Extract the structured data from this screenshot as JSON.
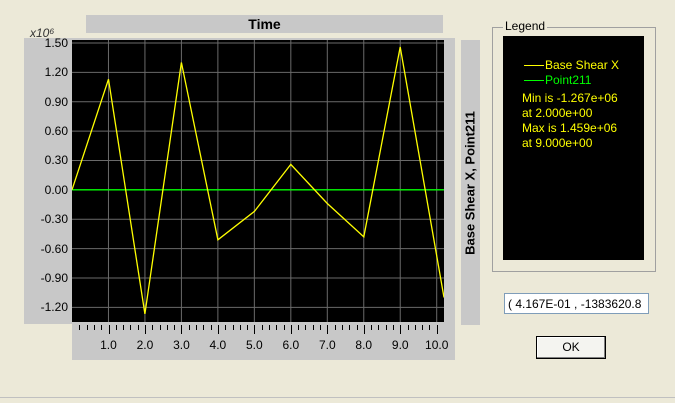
{
  "chart": {
    "title": "Time",
    "y_scale": "x10⁶",
    "ylabel": "Base Shear X, Point211",
    "yticks": [
      "1.50",
      "1.20",
      "0.90",
      "0.60",
      "0.30",
      "0.00",
      "-0.30",
      "-0.60",
      "-0.90",
      "-1.20"
    ],
    "xticks": [
      "1.0",
      "2.0",
      "3.0",
      "4.0",
      "5.0",
      "6.0",
      "7.0",
      "8.0",
      "9.0",
      "10.0"
    ]
  },
  "chart_data": {
    "type": "line",
    "title": "Time",
    "xlabel": "",
    "ylabel": "Base Shear X, Point211",
    "xlim": [
      0,
      10.2
    ],
    "ylim": [
      -1.35,
      1.53
    ],
    "grid": true,
    "series": [
      {
        "name": "Base Shear X",
        "color": "#ffff00",
        "x": [
          0,
          1.0,
          2.0,
          3.0,
          4.0,
          5.0,
          6.0,
          7.0,
          8.0,
          9.0,
          10.2
        ],
        "y": [
          0.0,
          1.13,
          -1.267,
          1.3,
          -0.51,
          -0.22,
          0.26,
          -0.14,
          -0.48,
          1.459,
          -1.1
        ]
      },
      {
        "name": "Point211",
        "color": "#00ff00",
        "x": [
          0,
          10.2
        ],
        "y": [
          0.0,
          0.0
        ]
      }
    ]
  },
  "legend": {
    "title": "Legend",
    "series1": "Base Shear X",
    "series2": "Point211",
    "min_line": "Min is -1.267e+06",
    "min_at": "at 2.000e+00",
    "max_line": "Max is 1.459e+06",
    "max_at": "at 9.000e+00",
    "series1_color": "#ffff00",
    "series2_color": "#00ff00"
  },
  "coord_readout": "( 4.167E-01 , -1383620.8",
  "ok_label": "OK"
}
